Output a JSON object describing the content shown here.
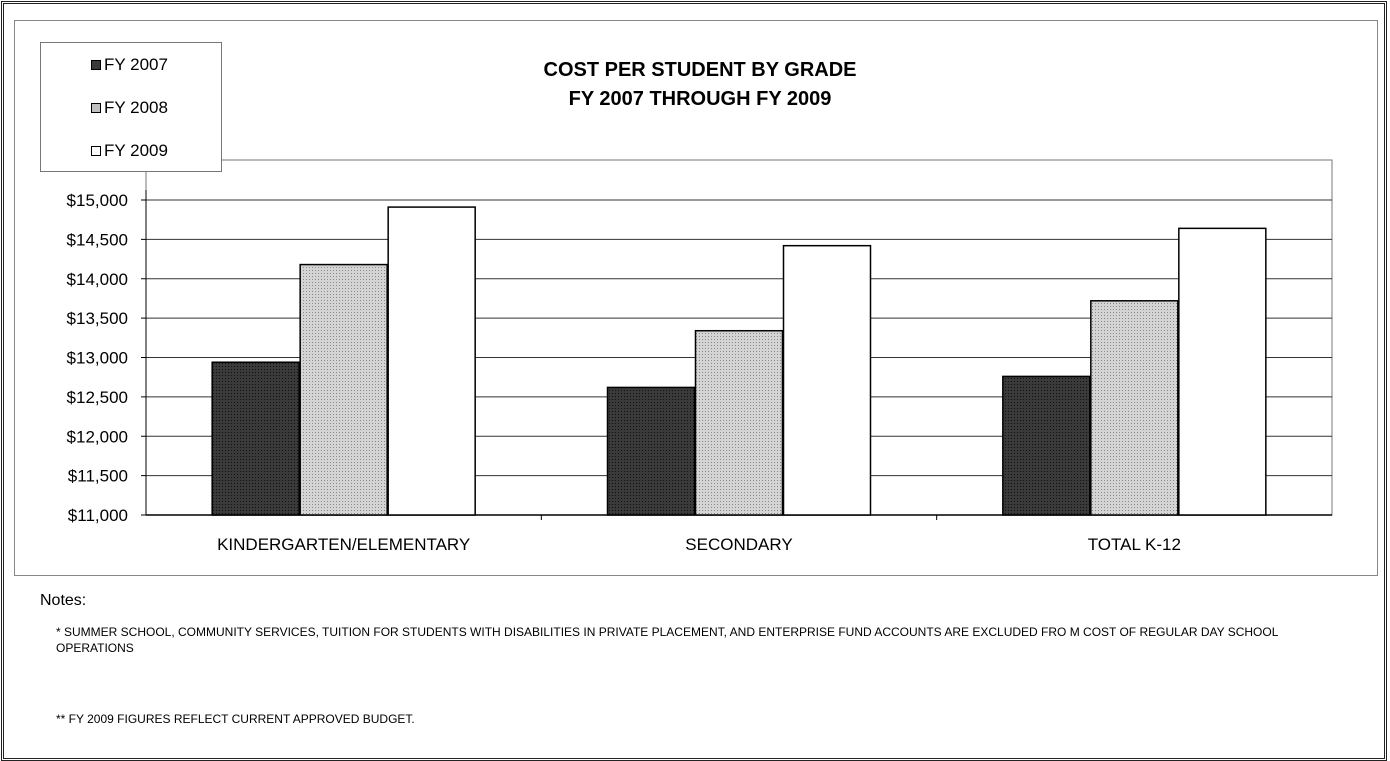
{
  "chart_data": {
    "type": "bar",
    "title": "COST PER STUDENT BY GRADE",
    "subtitle": "FY 2007 THROUGH FY 2009",
    "categories": [
      "KINDERGARTEN/ELEMENTARY",
      "SECONDARY",
      "TOTAL K-12"
    ],
    "series": [
      {
        "name": "FY 2007",
        "values": [
          12940,
          12620,
          12760
        ],
        "color": "#3a3a3a"
      },
      {
        "name": "FY 2008",
        "values": [
          14180,
          13340,
          13720
        ],
        "color": "#c8c8c8"
      },
      {
        "name": "FY 2009",
        "values": [
          14910,
          14420,
          14640
        ],
        "color": "#ffffff"
      }
    ],
    "ylim": [
      11000,
      15000
    ],
    "yticks": [
      "$11,000",
      "$11,500",
      "$12,000",
      "$12,500",
      "$13,000",
      "$13,500",
      "$14,000",
      "$14,500",
      "$15,000"
    ],
    "xlabel": "",
    "ylabel": "",
    "grid": true,
    "legend_position": "top-left"
  },
  "notes": {
    "heading": "Notes:",
    "note1": "* SUMMER SCHOOL, COMMUNITY SERVICES, TUITION FOR STUDENTS WITH DISABILITIES IN PRIVATE PLACEMENT, AND ENTERPRISE FUND ACCOUNTS ARE EXCLUDED FRO M COST OF REGULAR DAY SCHOOL OPERATIONS",
    "note2": "** FY 2009 FIGURES REFLECT CURRENT APPROVED BUDGET."
  }
}
